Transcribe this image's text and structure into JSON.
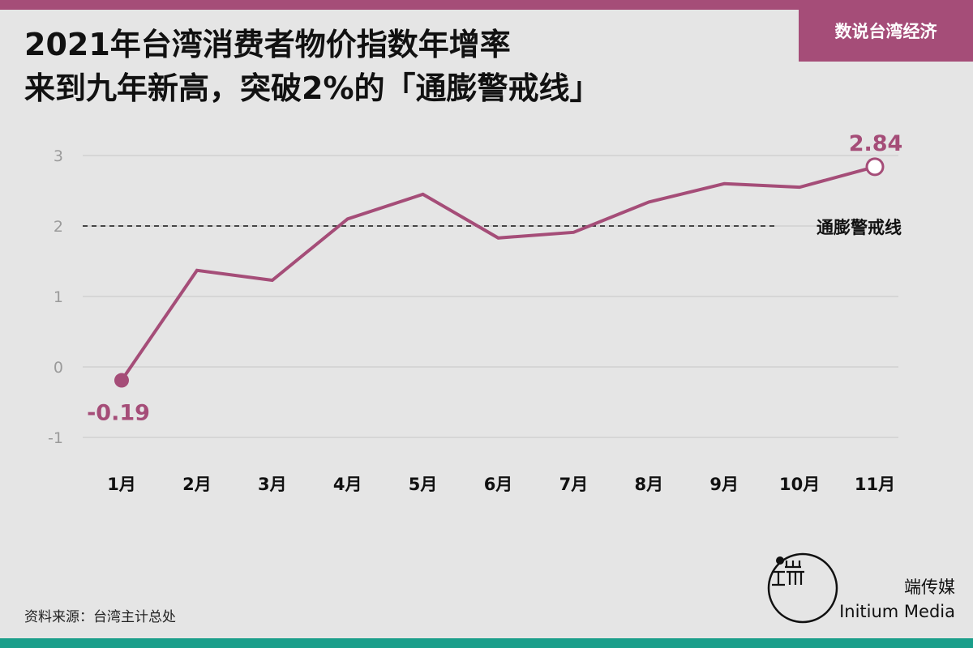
{
  "brand": {
    "tab_label": "数说台湾经济"
  },
  "title": {
    "line1": "2021年台湾消费者物价指数年增率",
    "line2": "来到九年新高，突破2%的「通膨警戒线」"
  },
  "colors": {
    "accent": "#a54d78",
    "bottom_bar": "#1a9e8a",
    "background": "#e5e5e5"
  },
  "chart_data": {
    "type": "line",
    "categories": [
      "1月",
      "2月",
      "3月",
      "4月",
      "5月",
      "6月",
      "7月",
      "8月",
      "9月",
      "10月",
      "11月"
    ],
    "series": [
      {
        "values": [
          -0.19,
          1.37,
          1.23,
          2.1,
          2.45,
          1.83,
          1.91,
          2.34,
          2.6,
          2.55,
          2.84
        ]
      }
    ],
    "ylim": [
      -1,
      3
    ],
    "yticks": [
      3,
      2,
      1,
      0,
      -1
    ],
    "grid": true,
    "reference_line": {
      "value": 2,
      "label": "通膨警戒线"
    },
    "annotations": [
      {
        "index": 0,
        "label": "-0.19"
      },
      {
        "index": 10,
        "label": "2.84"
      }
    ]
  },
  "source": "资料来源：台湾主计总处",
  "logo": {
    "cn": "端传媒",
    "en": "Initium Media",
    "icon": "initium-logo-icon"
  }
}
